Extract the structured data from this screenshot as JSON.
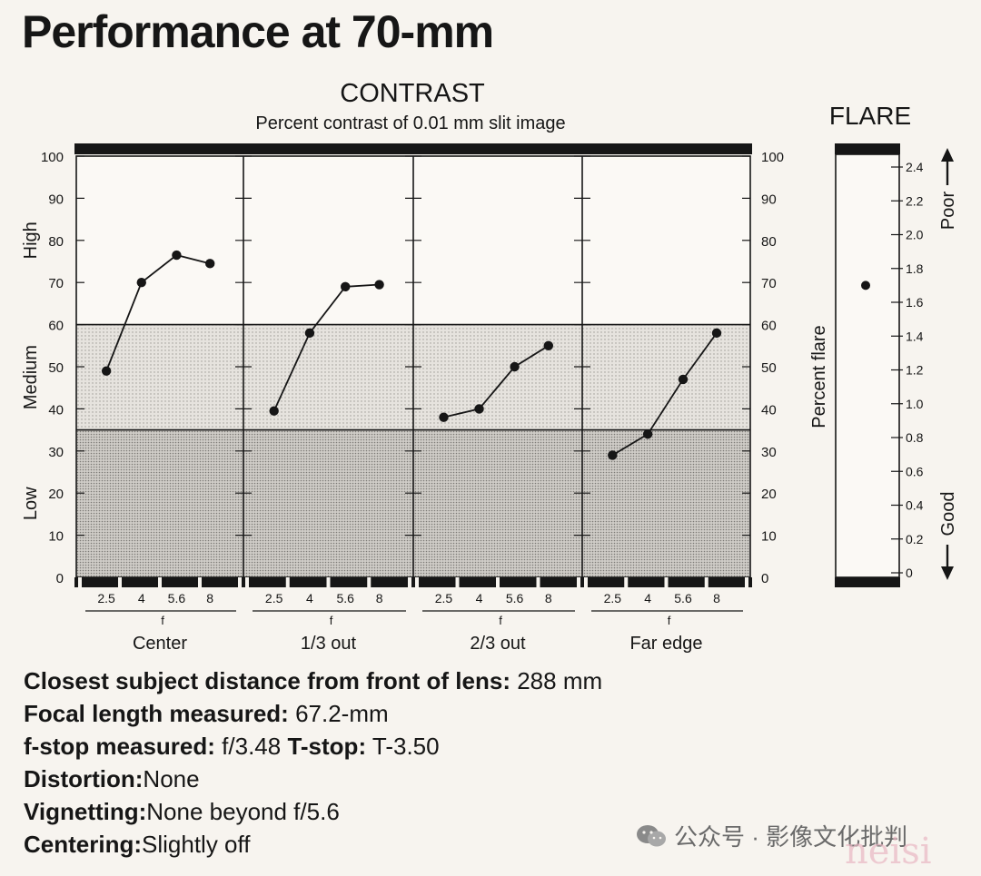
{
  "title": "Performance at 70-mm",
  "chart_data": [
    {
      "type": "line",
      "title": "CONTRAST",
      "subtitle": "Percent contrast of 0.01 mm slit image",
      "ylim": [
        0,
        100
      ],
      "yticks": [
        0,
        10,
        20,
        30,
        40,
        50,
        60,
        70,
        80,
        90,
        100
      ],
      "bands": [
        {
          "label": "Low",
          "from": 0,
          "to": 35
        },
        {
          "label": "Medium",
          "from": 35,
          "to": 60
        },
        {
          "label": "High",
          "from": 60,
          "to": 100
        }
      ],
      "x_label": "f",
      "categories": [
        "2.5",
        "4",
        "5.6",
        "8"
      ],
      "panels": [
        {
          "name": "Center",
          "values": [
            49,
            70,
            76.5,
            74.5
          ]
        },
        {
          "name": "1/3 out",
          "values": [
            39.5,
            58,
            69,
            69.5
          ]
        },
        {
          "name": "2/3 out",
          "values": [
            38,
            40,
            50,
            55
          ]
        },
        {
          "name": "Far edge",
          "values": [
            29,
            34,
            47,
            58
          ]
        }
      ]
    },
    {
      "type": "scatter",
      "title": "FLARE",
      "ylabel": "Percent flare",
      "ylim": [
        0,
        2.5
      ],
      "yticks": [
        "0",
        "0.2",
        "0.4",
        "0.6",
        "0.8",
        "1.0",
        "1.2",
        "1.4",
        "1.6",
        "1.8",
        "2.0",
        "2.2",
        "2.4"
      ],
      "value": 1.7,
      "scale_top_label": "Poor",
      "scale_bottom_label": "Good"
    }
  ],
  "specs": [
    {
      "label": "Closest subject distance from front of lens:",
      "value": "288 mm"
    },
    {
      "label": "Focal length measured:",
      "value": "67.2-mm"
    },
    {
      "label": "f-stop measured:",
      "value": "f/3.48",
      "label2": "T-stop:",
      "value2": "T-3.50"
    },
    {
      "label": "Distortion:",
      "value": "None"
    },
    {
      "label": "Vignetting:",
      "value": "None beyond f/5.6"
    },
    {
      "label": "Centering:",
      "value": "Slightly off"
    }
  ],
  "watermark": {
    "text": "公众号 · 影像文化批判",
    "signature": "neisi"
  }
}
